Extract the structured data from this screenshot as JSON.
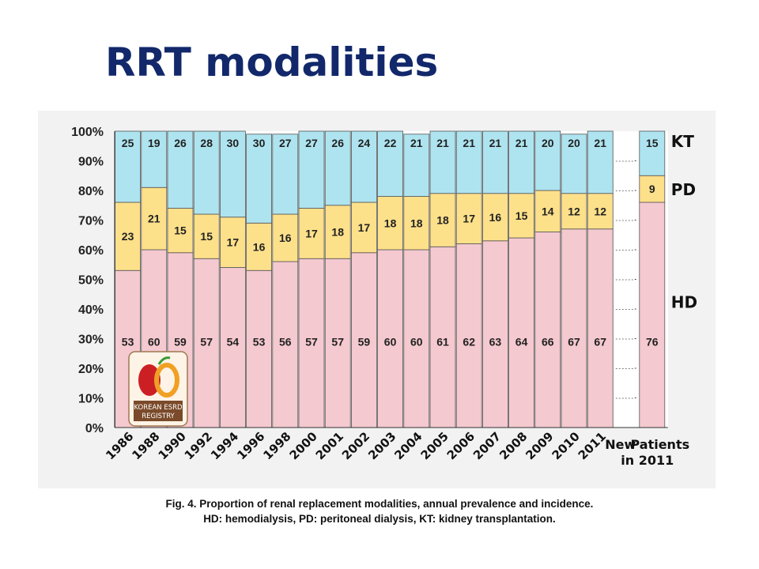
{
  "slide": {
    "title": "RRT modalities"
  },
  "logo": {
    "text_line1": "KOREAN ESRD",
    "text_line2": "REGISTRY"
  },
  "caption": {
    "line1": "Fig. 4. Proportion of renal replacement modalities, annual prevalence and incidence.",
    "line2": "HD: hemodialysis, PD: peritoneal dialysis, KT: kidney transplantation."
  },
  "colors": {
    "HD": "#f4c9cf",
    "PD": "#fde08a",
    "KT": "#aee4f0",
    "label": "#222222",
    "panel": "#f2f2f2"
  },
  "chart_data": {
    "type": "bar",
    "stacked": true,
    "percent": true,
    "categories": [
      "1986",
      "1988",
      "1990",
      "1992",
      "1994",
      "1996",
      "1998",
      "2000",
      "2001",
      "2002",
      "2003",
      "2004",
      "2005",
      "2006",
      "2007",
      "2008",
      "2009",
      "2010",
      "2011"
    ],
    "series": [
      {
        "name": "HD",
        "values": [
          53,
          60,
          59,
          57,
          54,
          53,
          56,
          57,
          57,
          59,
          60,
          60,
          61,
          62,
          63,
          64,
          66,
          67,
          67
        ]
      },
      {
        "name": "PD",
        "values": [
          23,
          21,
          15,
          15,
          17,
          16,
          16,
          17,
          18,
          17,
          18,
          18,
          18,
          17,
          16,
          15,
          14,
          12,
          12
        ]
      },
      {
        "name": "KT",
        "values": [
          25,
          19,
          26,
          28,
          30,
          30,
          27,
          27,
          26,
          24,
          22,
          21,
          21,
          21,
          21,
          21,
          20,
          20,
          21
        ]
      }
    ],
    "extra_bar": {
      "label": [
        "New",
        "Patients",
        "in 2011"
      ],
      "values": {
        "HD": 76,
        "PD": 9,
        "KT": 15
      }
    },
    "y_ticks": [
      "0%",
      "10%",
      "20%",
      "30%",
      "40%",
      "50%",
      "60%",
      "70%",
      "80%",
      "90%",
      "100%"
    ],
    "ylim": [
      0,
      100
    ],
    "legend": "right, labels beside the last bar",
    "grid": false
  }
}
